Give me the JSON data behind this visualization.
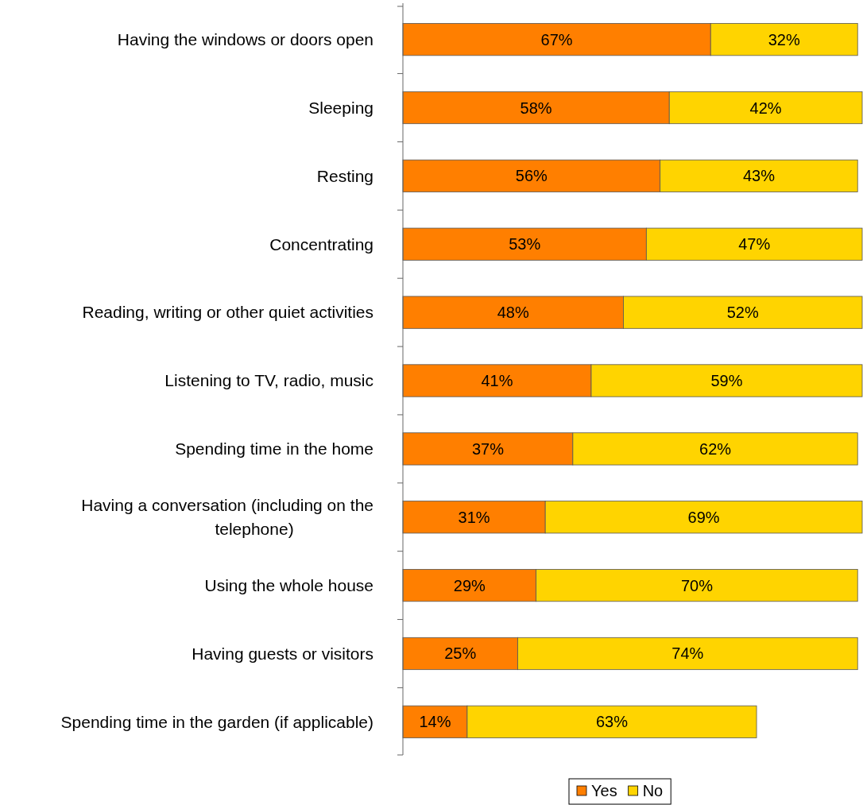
{
  "chart_data": {
    "type": "bar",
    "orientation": "horizontal",
    "stacked": true,
    "legend": "bottom",
    "categories": [
      "Having the windows or doors open",
      "Sleeping",
      "Resting",
      "Concentrating",
      "Reading, writing or other quiet activities",
      "Listening to TV, radio, music",
      "Spending time in the home",
      "Having a conversation (including on the telephone)",
      "Using the whole house",
      "Having guests or visitors",
      "Spending time in the garden (if applicable)"
    ],
    "series": [
      {
        "name": "Yes",
        "color": "#ff7f00",
        "values": [
          67,
          58,
          56,
          53,
          48,
          41,
          37,
          31,
          29,
          25,
          14
        ],
        "value_labels": [
          "67%",
          "58%",
          "56%",
          "53%",
          "48%",
          "41%",
          "37%",
          "31%",
          "29%",
          "25%",
          "14%"
        ]
      },
      {
        "name": "No",
        "color": "#ffd400",
        "values": [
          32,
          42,
          43,
          47,
          52,
          59,
          62,
          69,
          70,
          74,
          63
        ],
        "value_labels": [
          "32%",
          "42%",
          "43%",
          "47%",
          "52%",
          "59%",
          "62%",
          "69%",
          "70%",
          "74%",
          "63%"
        ]
      }
    ]
  }
}
